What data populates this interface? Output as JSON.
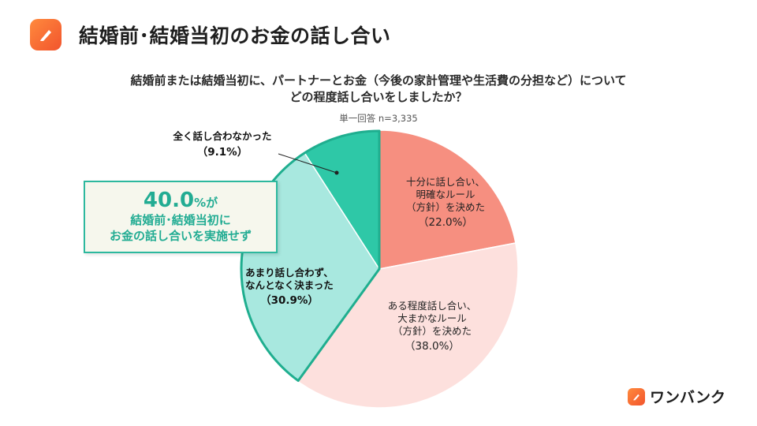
{
  "header": {
    "title": "結婚前･結婚当初のお金の話し合い",
    "logo_icon": "pencil-icon"
  },
  "question": {
    "line1": "結婚前または結婚当初に、パートナーとお金（今後の家計管理や生活費の分担など）について",
    "line2": "どの程度話し合いをしましたか？",
    "sample": "単一回答  n=3,335"
  },
  "callout": {
    "value": "40.0",
    "suffix": "%が",
    "line1": "結婚前･結婚当初に",
    "line2": "お金の話し合いを実施せず"
  },
  "brand": {
    "name": "ワンバンク",
    "icon": "pencil-icon"
  },
  "chart_data": {
    "type": "pie",
    "title": "",
    "slices": [
      {
        "label_lines": [
          "十分に話し合い、",
          "明確なルール",
          "（方針）を決めた"
        ],
        "value_label": "（22.0%）",
        "value": 22.0,
        "color": "#f68f80",
        "label_color": "#222222"
      },
      {
        "label_lines": [
          "ある程度話し合い、",
          "大まかなルール",
          "（方針）を決めた"
        ],
        "value_label": "（38.0%）",
        "value": 38.0,
        "color": "#fde0dd",
        "label_color": "#222222"
      },
      {
        "label_lines": [
          "あまり話し合わず、",
          "なんとなく決まった"
        ],
        "value_label": "（30.9%）",
        "value": 30.9,
        "color": "#a8e8df",
        "label_color": "#111111"
      },
      {
        "label_lines": [
          "全く話し合わなかった"
        ],
        "value_label": "（9.1%）",
        "value": 9.1,
        "color": "#2ec8a7",
        "label_color": "#111111"
      }
    ],
    "highlight_outline_color": "#1fae8f",
    "highlighted_slices": [
      2,
      3
    ]
  }
}
